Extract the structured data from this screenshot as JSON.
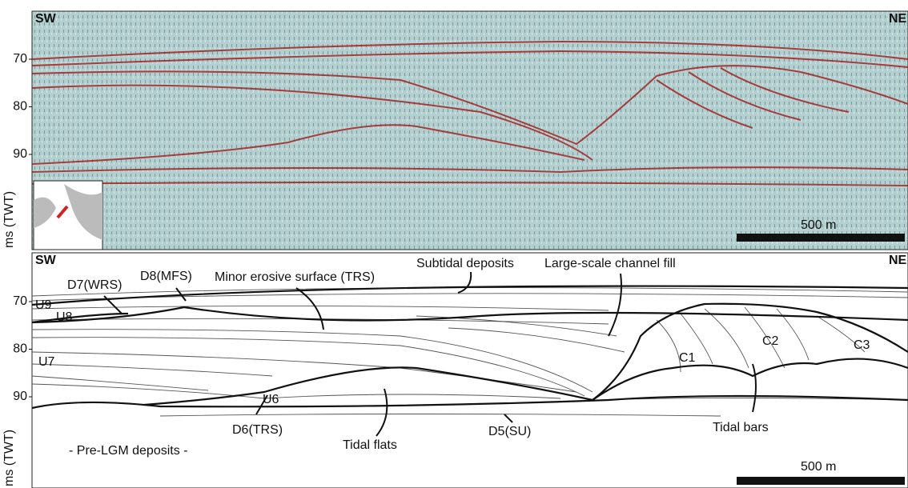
{
  "seismic_panel": {
    "left_label": "SW",
    "right_label": "NE",
    "axis_label": "ms (TWT)",
    "ticks": [
      70,
      80,
      90
    ],
    "scale_bar": "500 m"
  },
  "interpretation_panel": {
    "left_label": "SW",
    "right_label": "NE",
    "axis_label": "ms (TWT)",
    "ticks": [
      70,
      80,
      90
    ],
    "scale_bar": "500 m",
    "labels": [
      "D7(WRS)",
      "D8(MFS)",
      "Minor erosive surface (TRS)",
      "Subtidal deposits",
      "Large-scale channel fill",
      "U9",
      "U8",
      "U7",
      "U6",
      "C1",
      "C2",
      "C3",
      "D6(TRS)",
      "D5(SU)",
      "Tidal flats",
      "Tidal bars",
      "- Pre-LGM deposits -"
    ]
  }
}
